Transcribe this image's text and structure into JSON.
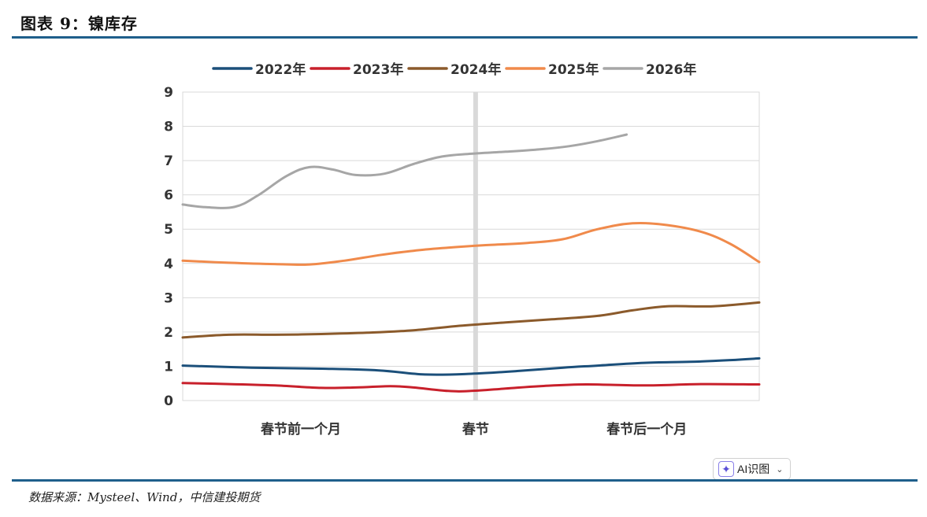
{
  "figure": {
    "title": "图表 9：镍库存",
    "source": "数据来源：Mysteel、Wind，中信建投期货"
  },
  "ai_button": {
    "icon": "sparkle-icon",
    "label": "AI识图",
    "chevron": "⌄"
  },
  "chart_data": {
    "type": "line",
    "title": "",
    "xlabel": "",
    "ylabel": "",
    "ylim": [
      0,
      9
    ],
    "yticks": [
      "0",
      "1",
      "2",
      "3",
      "4",
      "5",
      "6",
      "7",
      "8",
      "9"
    ],
    "x_range": [
      0,
      100
    ],
    "x_tick_labels": [
      {
        "label": "春节前一个月",
        "x": 20.5
      },
      {
        "label": "春节",
        "x": 50.8
      },
      {
        "label": "春节后一个月",
        "x": 80.5
      }
    ],
    "marker_line": {
      "x": 50.8,
      "color": "#d9d9d9"
    },
    "legend_position": "top",
    "series": [
      {
        "name": "2022年",
        "color": "#1b4f7a",
        "x": [
          0,
          12,
          24,
          34,
          42,
          50,
          58,
          66,
          72,
          80,
          88,
          95,
          100
        ],
        "values": [
          1.02,
          0.96,
          0.93,
          0.88,
          0.76,
          0.78,
          0.86,
          0.96,
          1.02,
          1.1,
          1.13,
          1.18,
          1.23
        ]
      },
      {
        "name": "2023年",
        "color": "#c8202b",
        "x": [
          0,
          8,
          16,
          24,
          30,
          36,
          40,
          46,
          50,
          56,
          62,
          70,
          80,
          90,
          100
        ],
        "values": [
          0.51,
          0.48,
          0.44,
          0.37,
          0.38,
          0.42,
          0.38,
          0.28,
          0.28,
          0.35,
          0.42,
          0.47,
          0.44,
          0.48,
          0.47
        ]
      },
      {
        "name": "2024年",
        "color": "#8b5a2b",
        "x": [
          0,
          8,
          16,
          24,
          32,
          40,
          48,
          56,
          64,
          72,
          78,
          84,
          92,
          100
        ],
        "values": [
          1.84,
          1.92,
          1.92,
          1.94,
          1.98,
          2.05,
          2.18,
          2.28,
          2.37,
          2.47,
          2.63,
          2.75,
          2.75,
          2.86
        ]
      },
      {
        "name": "2025年",
        "color": "#f08a4b",
        "x": [
          0,
          8,
          16,
          22,
          28,
          34,
          40,
          46,
          52,
          60,
          66,
          72,
          78,
          84,
          90,
          95,
          100
        ],
        "values": [
          4.08,
          4.02,
          3.98,
          3.97,
          4.08,
          4.24,
          4.37,
          4.46,
          4.53,
          4.6,
          4.71,
          5.0,
          5.17,
          5.12,
          4.92,
          4.57,
          4.04
        ]
      },
      {
        "name": "2026年",
        "color": "#a6a6a6",
        "x": [
          0,
          4,
          9,
          13,
          18,
          22,
          26,
          30,
          35,
          40,
          45,
          50,
          56,
          62,
          67,
          72,
          77
        ],
        "values": [
          5.72,
          5.64,
          5.65,
          5.98,
          6.55,
          6.81,
          6.74,
          6.58,
          6.62,
          6.9,
          7.12,
          7.2,
          7.26,
          7.33,
          7.42,
          7.57,
          7.76
        ]
      }
    ]
  }
}
